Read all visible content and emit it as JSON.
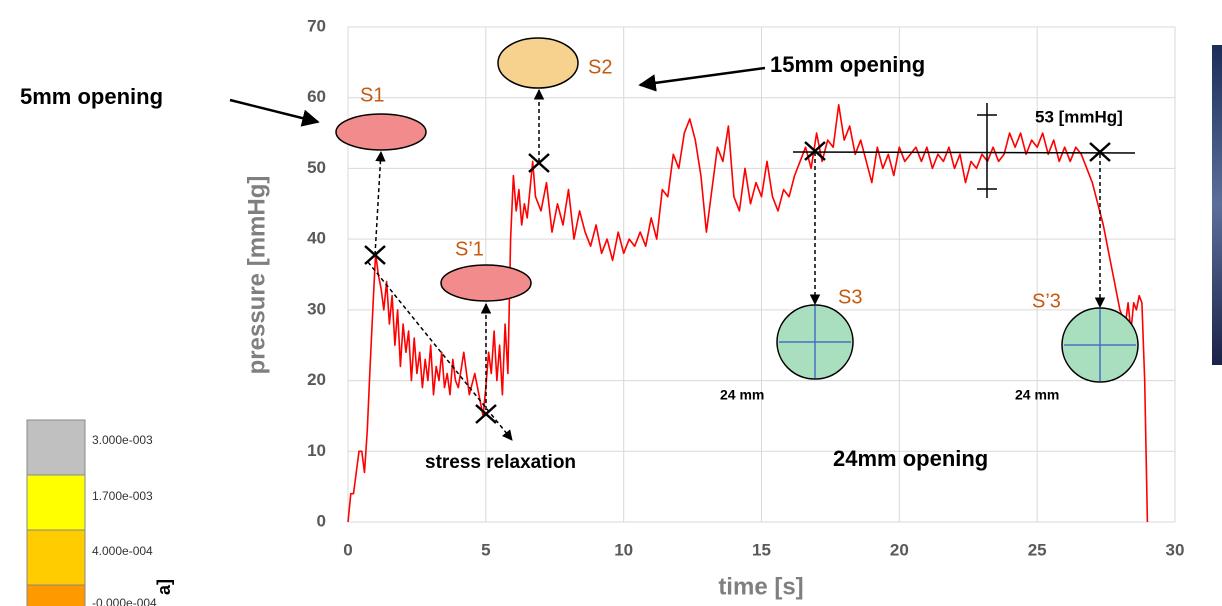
{
  "chart_data": {
    "type": "line",
    "xlabel": "time [s]",
    "ylabel": "pressure [mmHg]",
    "xlim": [
      0,
      30
    ],
    "xticks": [
      0,
      5,
      10,
      15,
      20,
      25,
      30
    ],
    "ylim": [
      0,
      70
    ],
    "yticks": [
      0,
      10,
      20,
      30,
      40,
      50,
      60,
      70
    ],
    "grid": true,
    "x": [
      0,
      0.1,
      0.2,
      0.4,
      0.5,
      0.6,
      0.7,
      0.8,
      0.9,
      1.0,
      1.1,
      1.2,
      1.3,
      1.4,
      1.5,
      1.6,
      1.7,
      1.8,
      1.9,
      2.0,
      2.1,
      2.2,
      2.3,
      2.4,
      2.5,
      2.6,
      2.7,
      2.8,
      2.9,
      3.0,
      3.1,
      3.2,
      3.3,
      3.4,
      3.5,
      3.6,
      3.7,
      3.8,
      3.9,
      4.0,
      4.2,
      4.4,
      4.6,
      4.8,
      4.9,
      5.0,
      5.1,
      5.2,
      5.3,
      5.4,
      5.5,
      5.6,
      5.7,
      5.8,
      5.9,
      6.0,
      6.1,
      6.2,
      6.3,
      6.4,
      6.5,
      6.7,
      6.8,
      7.0,
      7.2,
      7.4,
      7.6,
      7.8,
      8.0,
      8.2,
      8.4,
      8.6,
      8.8,
      9.0,
      9.2,
      9.4,
      9.6,
      9.8,
      10.0,
      10.2,
      10.4,
      10.6,
      10.8,
      11.0,
      11.2,
      11.4,
      11.6,
      11.8,
      12.0,
      12.2,
      12.4,
      12.6,
      12.8,
      13.0,
      13.2,
      13.4,
      13.6,
      13.8,
      14.0,
      14.2,
      14.4,
      14.6,
      14.8,
      15.0,
      15.2,
      15.4,
      15.6,
      15.8,
      16.0,
      16.2,
      16.4,
      16.6,
      16.8,
      17.0,
      17.2,
      17.4,
      17.6,
      17.8,
      18.0,
      18.2,
      18.4,
      18.6,
      18.8,
      19.0,
      19.2,
      19.4,
      19.6,
      19.8,
      20.0,
      20.2,
      20.4,
      20.6,
      20.8,
      21.0,
      21.2,
      21.4,
      21.6,
      21.8,
      22.0,
      22.2,
      22.4,
      22.6,
      22.8,
      23.0,
      23.2,
      23.4,
      23.6,
      23.8,
      24.0,
      24.2,
      24.4,
      24.6,
      24.8,
      25.0,
      25.2,
      25.4,
      25.6,
      25.8,
      26.0,
      26.2,
      26.4,
      26.6,
      26.8,
      27.0,
      27.2,
      27.4,
      27.6,
      27.8,
      28.0,
      28.2,
      28.3,
      28.4,
      28.5,
      28.6,
      28.7,
      28.8,
      28.9,
      29.0
    ],
    "series": [
      {
        "color": "#ff0000",
        "values": [
          0,
          4,
          4,
          10,
          10,
          7,
          13,
          22,
          30,
          38,
          35,
          33,
          30,
          34,
          28,
          32,
          25,
          30,
          22,
          28,
          24,
          27,
          20,
          26,
          21,
          24,
          19,
          23,
          20,
          25,
          18,
          22,
          20,
          24,
          19,
          21,
          18,
          23,
          20,
          19,
          24,
          18,
          21,
          17,
          15,
          19,
          24,
          21,
          27,
          20,
          25,
          18,
          28,
          21,
          40,
          49,
          44,
          47,
          42,
          45,
          43,
          51,
          46,
          44,
          48,
          41,
          45,
          42,
          47,
          40,
          44,
          41,
          39,
          42,
          38,
          40,
          37,
          41,
          38,
          40,
          39,
          41,
          39,
          43,
          40,
          47,
          46,
          52,
          50,
          55,
          57,
          54,
          49,
          41,
          47,
          53,
          51,
          56,
          46,
          44,
          50,
          45,
          48,
          46,
          51,
          46,
          44,
          47,
          46,
          49,
          51,
          53,
          50,
          55,
          51,
          54,
          53,
          59,
          54,
          56,
          52,
          54,
          51,
          48,
          53,
          50,
          52,
          49,
          53,
          51,
          52,
          53,
          51,
          53,
          50,
          52,
          51,
          53,
          50,
          52,
          48,
          51,
          50,
          52,
          51,
          53,
          51,
          52,
          55,
          53,
          55,
          52,
          54,
          53,
          55,
          52,
          54,
          51,
          53,
          51,
          53,
          52,
          50,
          48,
          45,
          42,
          38,
          34,
          30,
          28,
          31,
          27,
          31,
          30,
          32,
          31,
          20,
          0
        ]
      }
    ],
    "annotations": {
      "opening_5": "5mm opening",
      "s1": "S1",
      "s2": "S2",
      "opening_15": "15mm opening",
      "s1p": "S’1",
      "relax": "stress relaxation",
      "s3": "S3",
      "s3p": "S’3",
      "d1": "24 mm",
      "d2": "24 mm",
      "opening_24": "24mm opening",
      "level": "53 [mmHg]"
    }
  },
  "colorbar": {
    "labels": [
      "3.000e-003",
      "1.700e-003",
      "4.000e-004",
      "-0.000e-004"
    ],
    "unit": "a]"
  }
}
